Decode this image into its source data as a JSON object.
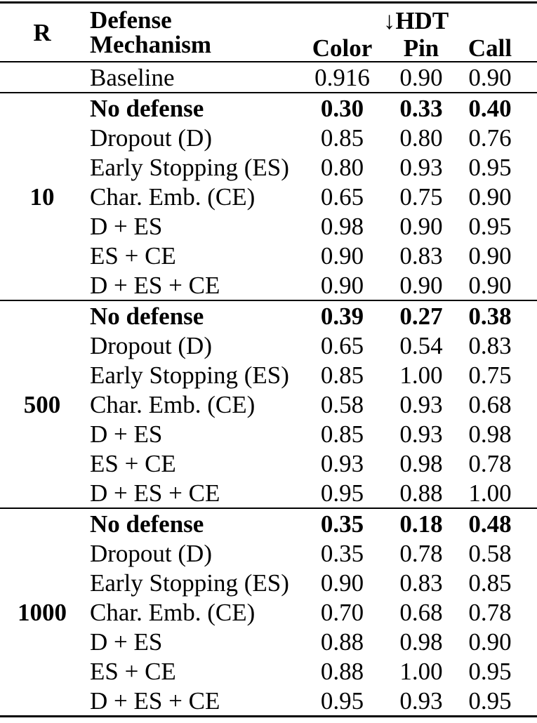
{
  "table": {
    "col_headers": {
      "r": "R",
      "defense": "Defense Mechanism",
      "group": "↓HDT",
      "metrics": [
        "Color",
        "Pin",
        "Call"
      ]
    },
    "baseline": {
      "label": "Baseline",
      "values": [
        "0.916",
        "0.90",
        "0.90"
      ]
    },
    "groups": [
      {
        "r": "10",
        "rows": [
          {
            "label": "No defense",
            "bold": true,
            "values": [
              "0.30",
              "0.33",
              "0.40"
            ]
          },
          {
            "label": "Dropout (D)",
            "bold": false,
            "values": [
              "0.85",
              "0.80",
              "0.76"
            ]
          },
          {
            "label": "Early Stopping (ES)",
            "bold": false,
            "values": [
              "0.80",
              "0.93",
              "0.95"
            ]
          },
          {
            "label": "Char. Emb. (CE)",
            "bold": false,
            "values": [
              "0.65",
              "0.75",
              "0.90"
            ]
          },
          {
            "label": "D + ES",
            "bold": false,
            "values": [
              "0.98",
              "0.90",
              "0.95"
            ]
          },
          {
            "label": "ES + CE",
            "bold": false,
            "values": [
              "0.90",
              "0.83",
              "0.90"
            ]
          },
          {
            "label": "D + ES + CE",
            "bold": false,
            "values": [
              "0.90",
              "0.90",
              "0.90"
            ]
          }
        ]
      },
      {
        "r": "500",
        "rows": [
          {
            "label": "No defense",
            "bold": true,
            "values": [
              "0.39",
              "0.27",
              "0.38"
            ]
          },
          {
            "label": "Dropout (D)",
            "bold": false,
            "values": [
              "0.65",
              "0.54",
              "0.83"
            ]
          },
          {
            "label": "Early Stopping (ES)",
            "bold": false,
            "values": [
              "0.85",
              "1.00",
              "0.75"
            ]
          },
          {
            "label": "Char. Emb. (CE)",
            "bold": false,
            "values": [
              "0.58",
              "0.93",
              "0.68"
            ]
          },
          {
            "label": "D + ES",
            "bold": false,
            "values": [
              "0.85",
              "0.93",
              "0.98"
            ]
          },
          {
            "label": "ES + CE",
            "bold": false,
            "values": [
              "0.93",
              "0.98",
              "0.78"
            ]
          },
          {
            "label": "D + ES + CE",
            "bold": false,
            "values": [
              "0.95",
              "0.88",
              "1.00"
            ]
          }
        ]
      },
      {
        "r": "1000",
        "rows": [
          {
            "label": "No defense",
            "bold": true,
            "values": [
              "0.35",
              "0.18",
              "0.48"
            ]
          },
          {
            "label": "Dropout (D)",
            "bold": false,
            "values": [
              "0.35",
              "0.78",
              "0.58"
            ]
          },
          {
            "label": "Early Stopping (ES)",
            "bold": false,
            "values": [
              "0.90",
              "0.83",
              "0.85"
            ]
          },
          {
            "label": "Char. Emb. (CE)",
            "bold": false,
            "values": [
              "0.70",
              "0.68",
              "0.78"
            ]
          },
          {
            "label": "D + ES",
            "bold": false,
            "values": [
              "0.88",
              "0.98",
              "0.90"
            ]
          },
          {
            "label": "ES + CE",
            "bold": false,
            "values": [
              "0.88",
              "1.00",
              "0.95"
            ]
          },
          {
            "label": "D + ES + CE",
            "bold": false,
            "values": [
              "0.95",
              "0.93",
              "0.95"
            ]
          }
        ]
      }
    ]
  }
}
